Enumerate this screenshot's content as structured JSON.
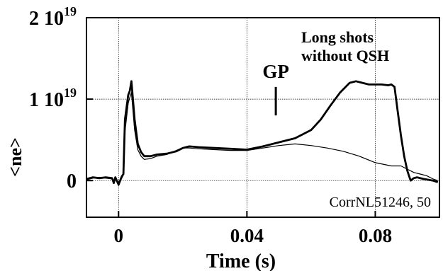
{
  "chart_data": {
    "type": "line",
    "xlabel": "Time (s)",
    "ylabel": "<ne>",
    "xlim": [
      -0.01,
      0.1
    ],
    "ylim": [
      -0.45,
      2.0
    ],
    "y_unit_scale": "10^19",
    "grid": true,
    "x_ticks": [
      {
        "value": 0,
        "label": "0"
      },
      {
        "value": 0.04,
        "label": "0.04"
      },
      {
        "value": 0.08,
        "label": "0.08"
      }
    ],
    "y_ticks": [
      {
        "value": 0,
        "mantissa": "0",
        "exponent": ""
      },
      {
        "value": 1,
        "mantissa": "1 10",
        "exponent": "19"
      },
      {
        "value": 2,
        "mantissa": "2 10",
        "exponent": "19"
      }
    ],
    "series": [
      {
        "style": "thick",
        "x": [
          -0.0099,
          -0.008,
          -0.006,
          -0.004,
          -0.002,
          -0.0015,
          -0.001,
          0,
          0.001,
          0.0015,
          0.002,
          0.003,
          0.0035,
          0.004,
          0.005,
          0.006,
          0.007,
          0.008,
          0.01,
          0.012,
          0.015,
          0.018,
          0.02,
          0.022,
          0.025,
          0.03,
          0.035,
          0.04,
          0.045,
          0.05,
          0.055,
          0.06,
          0.063,
          0.066,
          0.069,
          0.072,
          0.074,
          0.076,
          0.078,
          0.08,
          0.082,
          0.084,
          0.085,
          0.086,
          0.087,
          0.088,
          0.089,
          0.09,
          0.091,
          0.092,
          0.093,
          0.095,
          0.098,
          0.0995
        ],
        "y": [
          0.02,
          0.04,
          0.03,
          0.04,
          0.03,
          -0.03,
          0.04,
          -0.05,
          0.05,
          0.08,
          0.75,
          1.05,
          1.1,
          1.22,
          0.75,
          0.45,
          0.35,
          0.3,
          0.3,
          0.32,
          0.33,
          0.36,
          0.4,
          0.42,
          0.41,
          0.4,
          0.39,
          0.38,
          0.42,
          0.47,
          0.52,
          0.62,
          0.75,
          0.92,
          1.08,
          1.2,
          1.22,
          1.2,
          1.18,
          1.18,
          1.18,
          1.17,
          1.18,
          1.15,
          0.85,
          0.55,
          0.3,
          0.12,
          0.0,
          0.03,
          0.04,
          0.02,
          0.0,
          -0.02
        ]
      },
      {
        "style": "thin",
        "x": [
          -0.0099,
          -0.008,
          -0.006,
          -0.004,
          -0.002,
          -0.0015,
          -0.001,
          0,
          0.001,
          0.0015,
          0.002,
          0.003,
          0.0035,
          0.004,
          0.005,
          0.006,
          0.007,
          0.008,
          0.01,
          0.012,
          0.015,
          0.018,
          0.02,
          0.022,
          0.025,
          0.03,
          0.035,
          0.04,
          0.045,
          0.05,
          0.055,
          0.06,
          0.065,
          0.07,
          0.075,
          0.08,
          0.085,
          0.088,
          0.09,
          0.092,
          0.094,
          0.096,
          0.098,
          0.0995
        ],
        "y": [
          0.01,
          0.03,
          0.04,
          0.03,
          0.02,
          -0.02,
          0.02,
          -0.04,
          0.03,
          0.07,
          0.6,
          0.95,
          1.02,
          1.08,
          0.62,
          0.38,
          0.3,
          0.26,
          0.27,
          0.3,
          0.32,
          0.37,
          0.4,
          0.4,
          0.39,
          0.38,
          0.37,
          0.37,
          0.4,
          0.43,
          0.45,
          0.43,
          0.4,
          0.36,
          0.3,
          0.22,
          0.18,
          0.18,
          0.14,
          0.1,
          0.08,
          0.06,
          0.02,
          0.0
        ]
      }
    ],
    "gp_marker": {
      "label": "GP",
      "x": 0.049,
      "y_bottom": 0.8,
      "y_top": 1.15
    },
    "annotations": [
      {
        "text": "Long shots",
        "style": "big"
      },
      {
        "text": "without QSH",
        "style": "big"
      },
      {
        "text": "CorrNL51246, 50",
        "style": "small"
      }
    ]
  }
}
